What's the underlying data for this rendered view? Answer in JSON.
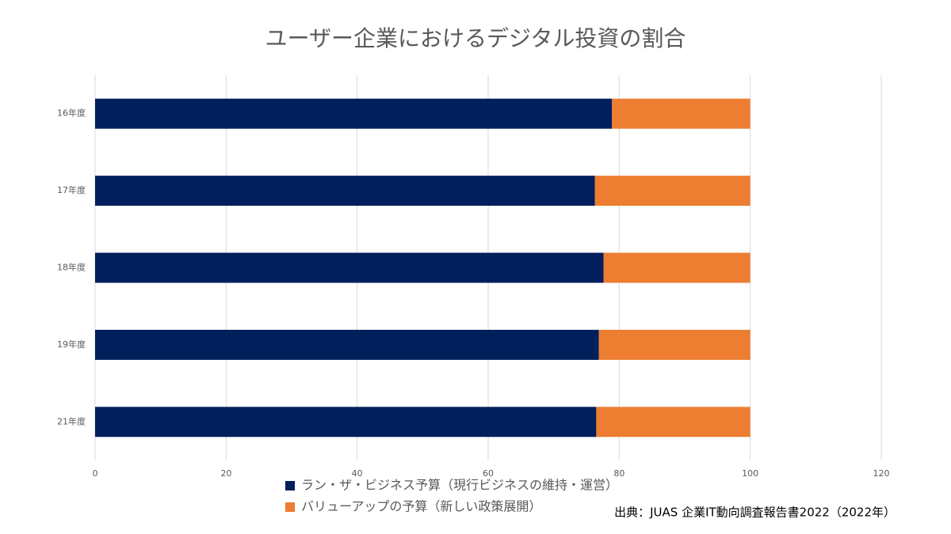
{
  "chart_data": {
    "type": "stacked_barh",
    "title": "ユーザー企業におけるデジタル投資の割合",
    "categories": [
      "16年度",
      "17年度",
      "18年度",
      "19年度",
      "21年度"
    ],
    "series": [
      {
        "name": "ラン・ザ・ビジネス予算（現行ビジネスの維持・運営）",
        "color": "#001f5b",
        "values": [
          78.9,
          76.3,
          77.6,
          76.9,
          76.5
        ]
      },
      {
        "name": "バリューアップの予算（新しい政策展開）",
        "color": "#ed7d31",
        "values": [
          21.1,
          23.7,
          22.4,
          23.1,
          23.5
        ]
      }
    ],
    "xlim": [
      0,
      120
    ],
    "xticks": [
      0,
      20,
      40,
      60,
      80,
      100,
      120
    ],
    "grid": true,
    "source": "出典：JUAS 企業IT動向調査報告書2022（2022年）"
  }
}
